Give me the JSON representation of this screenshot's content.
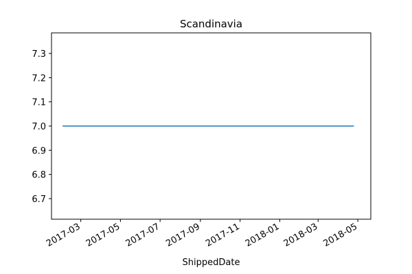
{
  "chart_data": {
    "type": "line",
    "title": "Scandinavia",
    "xlabel": "ShippedDate",
    "ylabel": "",
    "xlim": [
      "2017-01-15",
      "2018-05-21"
    ],
    "ylim": [
      6.615,
      7.385
    ],
    "x_ticks": [
      "2017-03-01",
      "2017-05-01",
      "2017-07-01",
      "2017-09-01",
      "2017-11-01",
      "2018-01-01",
      "2018-03-01",
      "2018-05-01"
    ],
    "x_tick_labels": [
      "2017-03",
      "2017-05",
      "2017-07",
      "2017-09",
      "2017-11",
      "2018-01",
      "2018-03",
      "2018-05"
    ],
    "y_ticks": [
      6.7,
      6.8,
      6.9,
      7.0,
      7.1,
      7.2,
      7.3
    ],
    "y_tick_labels": [
      "6.7",
      "6.8",
      "6.9",
      "7.0",
      "7.1",
      "7.2",
      "7.3"
    ],
    "grid": false,
    "series": [
      {
        "color": "#1f77b4",
        "x": [
          "2017-02-01",
          "2018-04-25"
        ],
        "y": [
          7.0,
          7.0
        ]
      }
    ]
  }
}
